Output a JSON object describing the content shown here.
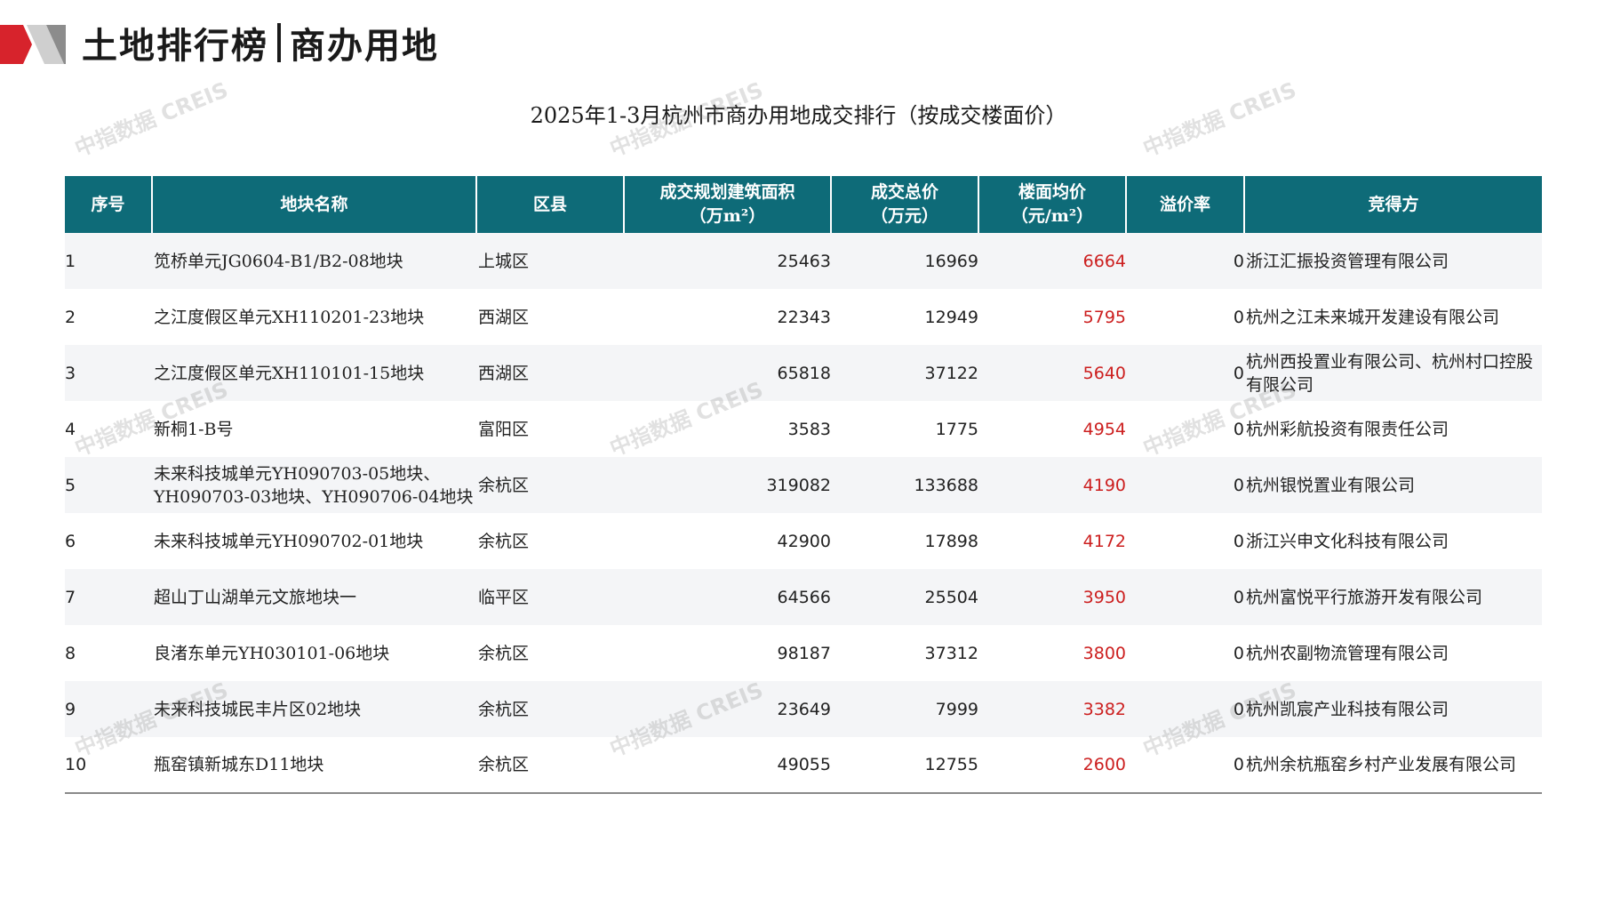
{
  "header": {
    "title_left": "土地排行榜",
    "title_right": "商办用地"
  },
  "table_title": "2025年1-3月杭州市商办用地成交排行（按成交楼面价）",
  "table": {
    "headers": {
      "rank": "序号",
      "name": "地块名称",
      "district": "区县",
      "area": [
        "成交规划建筑面积",
        "（万m²）"
      ],
      "total": [
        "成交总价",
        "（万元）"
      ],
      "price": [
        "楼面均价",
        "（元/m²）"
      ],
      "premium": "溢价率",
      "winner": "竞得方"
    },
    "rows": [
      {
        "rank": "1",
        "name": "笕桥单元JG0604-B1/B2-08地块",
        "district": "上城区",
        "area": "25463",
        "total": "16969",
        "price": "6664",
        "premium": "0",
        "winner": "浙江汇振投资管理有限公司"
      },
      {
        "rank": "2",
        "name": "之江度假区单元XH110201-23地块",
        "district": "西湖区",
        "area": "22343",
        "total": "12949",
        "price": "5795",
        "premium": "0",
        "winner": "杭州之江未来城开发建设有限公司"
      },
      {
        "rank": "3",
        "name": "之江度假区单元XH110101-15地块",
        "district": "西湖区",
        "area": "65818",
        "total": "37122",
        "price": "5640",
        "premium": "0",
        "winner": "杭州西投置业有限公司、杭州村口控股有限公司"
      },
      {
        "rank": "4",
        "name": "新桐1-B号",
        "district": "富阳区",
        "area": "3583",
        "total": "1775",
        "price": "4954",
        "premium": "0",
        "winner": "杭州彩航投资有限责任公司"
      },
      {
        "rank": "5",
        "name": "未来科技城单元YH090703-05地块、YH090703-03地块、YH090706-04地块",
        "district": "余杭区",
        "area": "319082",
        "total": "133688",
        "price": "4190",
        "premium": "0",
        "winner": "杭州银悦置业有限公司"
      },
      {
        "rank": "6",
        "name": "未来科技城单元YH090702-01地块",
        "district": "余杭区",
        "area": "42900",
        "total": "17898",
        "price": "4172",
        "premium": "0",
        "winner": "浙江兴申文化科技有限公司"
      },
      {
        "rank": "7",
        "name": "超山丁山湖单元文旅地块一",
        "district": "临平区",
        "area": "64566",
        "total": "25504",
        "price": "3950",
        "premium": "0",
        "winner": "杭州富悦平行旅游开发有限公司"
      },
      {
        "rank": "8",
        "name": "良渚东单元YH030101-06地块",
        "district": "余杭区",
        "area": "98187",
        "total": "37312",
        "price": "3800",
        "premium": "0",
        "winner": "杭州农副物流管理有限公司"
      },
      {
        "rank": "9",
        "name": "未来科技城民丰片区02地块",
        "district": "余杭区",
        "area": "23649",
        "total": "7999",
        "price": "3382",
        "premium": "0",
        "winner": "杭州凯宸产业科技有限公司"
      },
      {
        "rank": "10",
        "name": "瓶窑镇新城东D11地块",
        "district": "余杭区",
        "area": "49055",
        "total": "12755",
        "price": "2600",
        "premium": "0",
        "winner": "杭州余杭瓶窑乡村产业发展有限公司"
      }
    ]
  },
  "watermark": "中指数据 CREIS",
  "colors": {
    "header_bg": "#0e6b78",
    "price_text": "#cc1e1e",
    "logo_red": "#d7232c"
  }
}
